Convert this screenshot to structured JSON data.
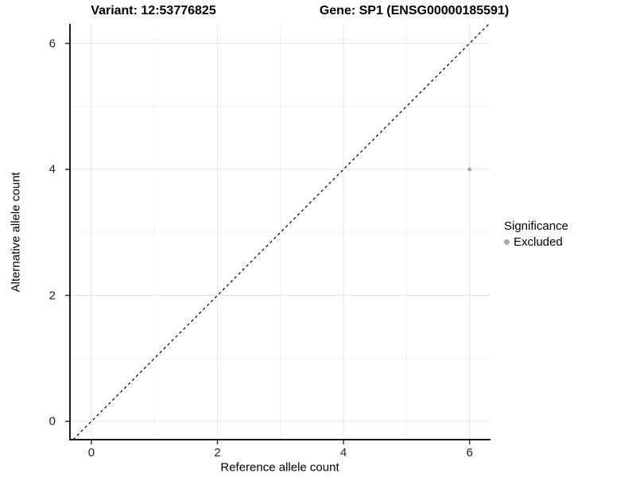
{
  "chart_data": {
    "type": "scatter",
    "title_left": "Variant: 12:53776825",
    "title_right": "Gene: SP1 (ENSG00000185591)",
    "xlabel": "Reference allele count",
    "ylabel": "Alternative allele count",
    "x_ticks": [
      0,
      2,
      4,
      6
    ],
    "y_ticks": [
      0,
      2,
      4,
      6
    ],
    "x_minor_ticks": [
      1,
      3,
      5
    ],
    "y_minor_ticks": [
      1,
      3,
      5
    ],
    "xlim": [
      -0.34,
      6.32
    ],
    "ylim": [
      -0.29,
      6.31
    ],
    "grid": true,
    "legend_position": "right",
    "legend_title": "Significance",
    "series": [
      {
        "name": "Excluded",
        "color": "#ababab",
        "marker": "circle",
        "marker_size_px": 5,
        "points": [
          [
            6,
            4
          ]
        ]
      }
    ],
    "reference_line": {
      "kind": "identity",
      "equation": "y = x",
      "style": "dashed",
      "color": "#000000"
    },
    "colors": {
      "grid_major": "#e4e4e4",
      "grid_minor": "#f0f0f0",
      "axis_line": "#1a1a1a",
      "tick_mark": "#333333",
      "tick_label": "#262626",
      "background": "#ffffff"
    }
  }
}
